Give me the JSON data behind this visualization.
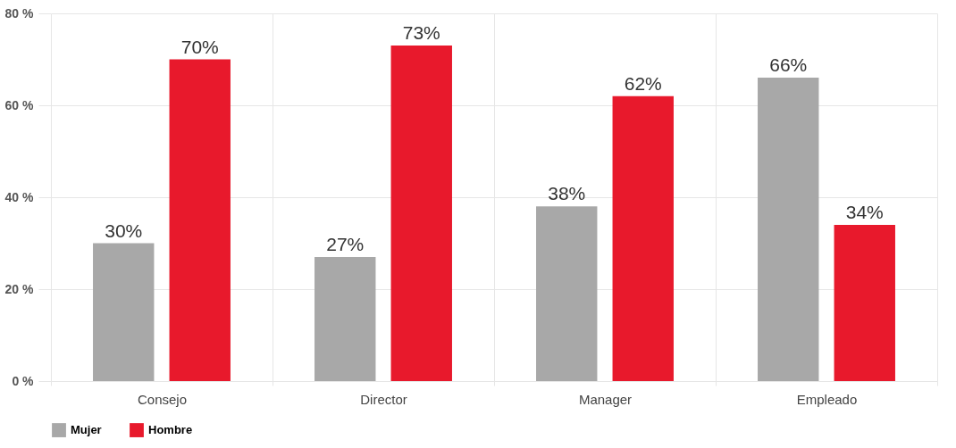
{
  "chart_data": {
    "type": "bar",
    "categories": [
      "Consejo",
      "Director",
      "Manager",
      "Empleado"
    ],
    "series": [
      {
        "name": "Mujer",
        "color": "#a8a8a8",
        "values": [
          30,
          27,
          38,
          66
        ],
        "value_labels": [
          "30%",
          "27%",
          "38%",
          "66%"
        ]
      },
      {
        "name": "Hombre",
        "color": "#e8192c",
        "values": [
          70,
          73,
          62,
          34
        ],
        "value_labels": [
          "70%",
          "73%",
          "62%",
          "34%"
        ]
      }
    ],
    "ylim": [
      0,
      80
    ],
    "yticks": [
      {
        "value": 0,
        "label": "0 %"
      },
      {
        "value": 20,
        "label": "20 %"
      },
      {
        "value": 40,
        "label": "40 %"
      },
      {
        "value": 60,
        "label": "60 %"
      },
      {
        "value": 80,
        "label": "80 %"
      }
    ],
    "grid": true,
    "legend": "bottom"
  }
}
